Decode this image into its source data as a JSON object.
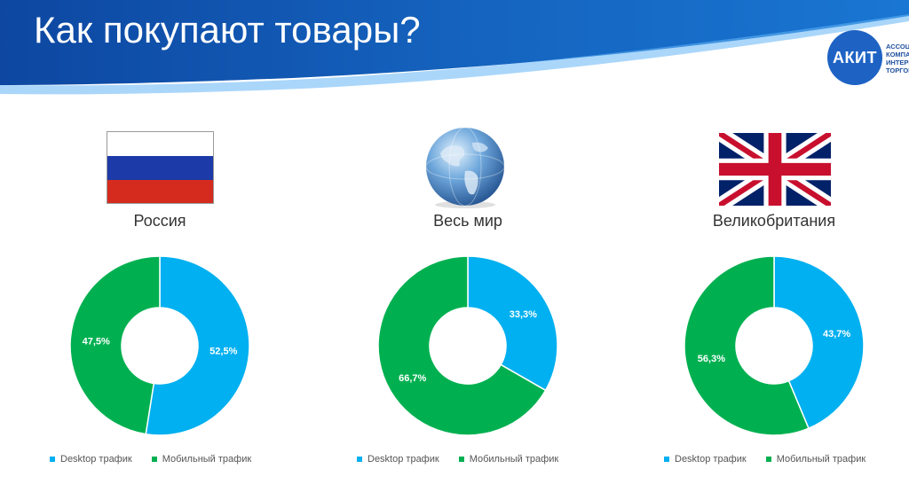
{
  "title": "Как покупают товары?",
  "logo": {
    "abbr": "АКИТ",
    "lines": [
      "АССОЦ",
      "КОМПА",
      "ИНТЕРН",
      "ТОРГОВ"
    ]
  },
  "colors": {
    "desktop": "#00b0f0",
    "mobile": "#00b050",
    "header": "#1565c0"
  },
  "legend": {
    "desktop": "Desktop трафик",
    "mobile": "Мобильный трафик"
  },
  "regions": [
    {
      "name": "Россия",
      "flag_icon": "russia-flag-icon"
    },
    {
      "name": "Весь мир",
      "flag_icon": "globe-icon"
    },
    {
      "name": "Великобритания",
      "flag_icon": "uk-flag-icon"
    }
  ],
  "chart_data": [
    {
      "type": "pie",
      "title": "Россия",
      "slices": [
        {
          "label": "Desktop трафик",
          "value": 52.5,
          "text": "52,5%"
        },
        {
          "label": "Мобильный трафик",
          "value": 47.5,
          "text": "47,5%"
        }
      ]
    },
    {
      "type": "pie",
      "title": "Весь мир",
      "slices": [
        {
          "label": "Desktop трафик",
          "value": 33.3,
          "text": "33,3%"
        },
        {
          "label": "Мобильный трафик",
          "value": 66.7,
          "text": "66,7%"
        }
      ]
    },
    {
      "type": "pie",
      "title": "Великобритания",
      "slices": [
        {
          "label": "Desktop трафик",
          "value": 43.7,
          "text": "43,7%"
        },
        {
          "label": "Мобильный трафик",
          "value": 56.3,
          "text": "56,3%"
        }
      ]
    }
  ]
}
